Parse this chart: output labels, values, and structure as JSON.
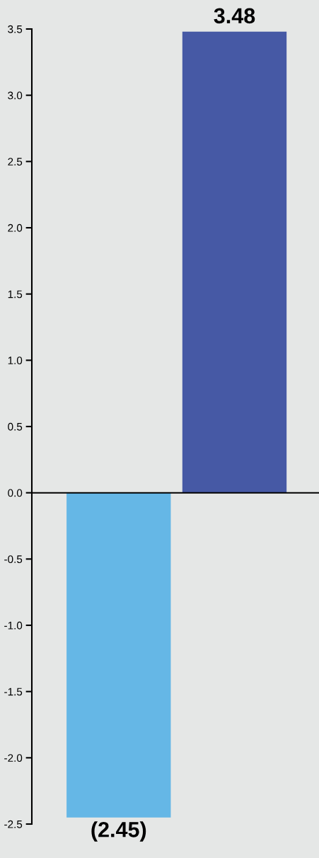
{
  "chart_data": {
    "type": "bar",
    "categories": [
      null,
      null
    ],
    "values": [
      -2.45,
      3.48
    ],
    "colors": [
      "#65b7e6",
      "#4659a5"
    ],
    "value_labels": [
      "(2.45)",
      "3.48"
    ],
    "ylim": [
      -2.5,
      3.5
    ],
    "yticks": [
      -2.5,
      {
        "value": -2,
        "label": "-2.0"
      },
      -1.5,
      {
        "value": -1,
        "label": "-1.0"
      },
      -0.5,
      {
        "value": 0,
        "label": "0.0"
      },
      0.5,
      {
        "value": 1,
        "label": "1.0"
      },
      1.5,
      {
        "value": 2,
        "label": "2.0"
      },
      2.5,
      {
        "value": 3,
        "label": "3.0"
      },
      3.5
    ],
    "tick_labels": "y"
  }
}
